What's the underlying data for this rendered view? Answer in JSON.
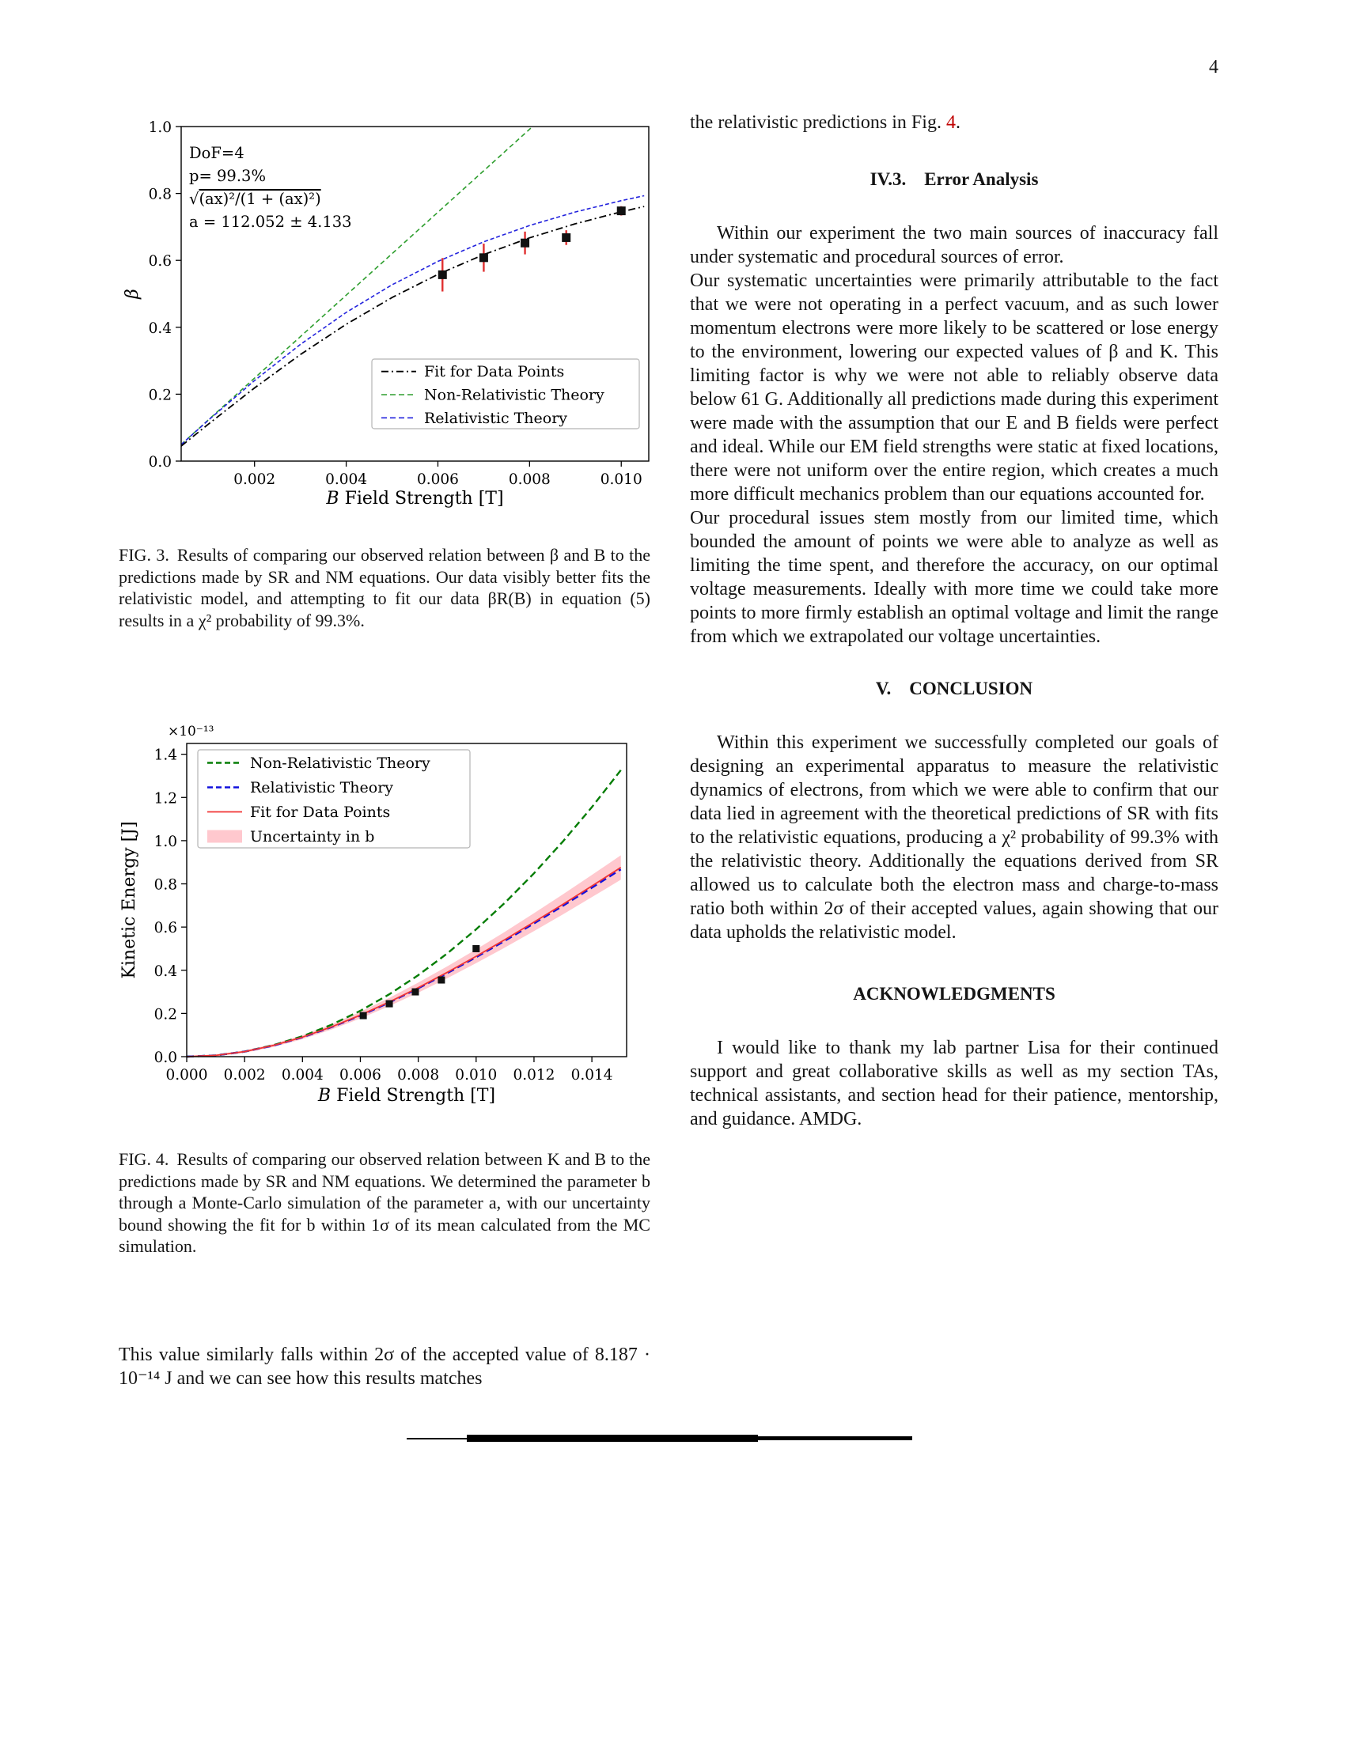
{
  "page": {
    "number": "4"
  },
  "figures": {
    "fig3": {
      "label": "FIG. 3.",
      "caption": "Results of comparing our observed relation between β and B to the predictions made by SR and NM equations. Our data visibly better fits the relativistic model, and attempting to fit our data βR(B) in equation (5) results in a χ² probability of 99.3%."
    },
    "fig4": {
      "label": "FIG. 4.",
      "caption": "Results of comparing our observed relation between K and B to the predictions made by SR and NM equations. We determined the parameter b through a Monte-Carlo simulation of the parameter a, with our uncertainty bound showing the fit for b within 1σ of its mean calculated from the MC simulation."
    }
  },
  "left_column": {
    "closing_paragraph": "This value similarly falls within 2σ of the accepted value of 8.187 · 10⁻¹⁴ J and we can see how this results matches"
  },
  "right_column": {
    "continuation": {
      "lead": "the relativistic predictions in Fig. ",
      "figref": "4",
      "tail": "."
    },
    "error_analysis": {
      "heading": "IV.3.  Error Analysis",
      "para1": "Within our experiment the two main sources of inaccuracy fall under systematic and procedural sources of error.",
      "para2": "Our systematic uncertainties were primarily attributable to the fact that we were not operating in a perfect vacuum, and as such lower momentum electrons were more likely to be scattered or lose energy to the environment, lowering our expected values of β and K. This limiting factor is why we were not able to reliably observe data below 61 G. Additionally all predictions made during this experiment were made with the assumption that our E and B fields were perfect and ideal. While our EM field strengths were static at fixed locations, there were not uniform over the entire region, which creates a much more difficult mechanics problem than our equations accounted for.",
      "para3": "Our procedural issues stem mostly from our limited time, which bounded the amount of points we were able to analyze as well as limiting the time spent, and therefore the accuracy, on our optimal voltage measurements. Ideally with more time we could take more points to more firmly establish an optimal voltage and limit the range from which we extrapolated our voltage uncertainties."
    },
    "conclusion": {
      "heading": "V.  CONCLUSION",
      "para": "Within this experiment we successfully completed our goals of designing an experimental apparatus to measure the relativistic dynamics of electrons, from which we were able to confirm that our data lied in agreement with the theoretical predictions of SR with fits to the relativistic equations, producing a χ² probability of 99.3% with the relativistic theory. Additionally the equations derived from SR allowed us to calculate both the electron mass and charge-to-mass ratio both within 2σ of their accepted values, again showing that our data upholds the relativistic model."
    },
    "acknowledgments": {
      "heading": "ACKNOWLEDGMENTS",
      "para": "I would like to thank my lab partner Lisa for their continued support and great collaborative skills as well as my section TAs, technical assistants, and section head for their patience, mentorship, and guidance. AMDG."
    }
  },
  "chart_data": [
    {
      "type": "line",
      "name": "beta-vs-b",
      "title": "",
      "xlabel_segments": [
        {
          "text": "B",
          "italic": true
        },
        {
          "text": " Field Strength [T]",
          "italic": false
        }
      ],
      "ylabel_segments": [
        {
          "text": "β",
          "italic": true
        }
      ],
      "xlim": [
        0.0004,
        0.0106
      ],
      "ylim": [
        0.0,
        1.0
      ],
      "xticks": [
        0.002,
        0.004,
        0.006,
        0.008,
        0.01
      ],
      "yticks": [
        0.0,
        0.2,
        0.4,
        0.6,
        0.8,
        1.0
      ],
      "grid": false,
      "annotation_lines": [
        "DoF=4",
        "p= 99.3%",
        "√(ax)²/(1 + (ax)²)",
        "a = 112.052 ± 4.133"
      ],
      "series": [
        {
          "name": "Non-Relativistic Theory",
          "style": "dashed",
          "dash": "6 4",
          "lw": 1.6,
          "color": "#2e9e2e",
          "x": [
            0.0004,
            0.002,
            0.004,
            0.006,
            0.008,
            0.008065
          ],
          "y": [
            0.0496,
            0.248,
            0.496,
            0.744,
            0.992,
            1.0
          ]
        },
        {
          "name": "Relativistic Theory",
          "style": "dashed",
          "dash": "5 3",
          "lw": 1.6,
          "color": "#2222dd",
          "x": [
            0.0004,
            0.001,
            0.002,
            0.003,
            0.004,
            0.005,
            0.006,
            0.007,
            0.008,
            0.009,
            0.01,
            0.0105
          ],
          "y": [
            0.0495,
            0.1231,
            0.2407,
            0.3487,
            0.4444,
            0.5269,
            0.5969,
            0.6555,
            0.7042,
            0.7447,
            0.7784,
            0.7931
          ]
        },
        {
          "name": "Fit for Data Points",
          "style": "dashdot",
          "lw": 1.8,
          "color": "#000000",
          "x": [
            0.0004,
            0.001,
            0.002,
            0.003,
            0.004,
            0.005,
            0.006,
            0.007,
            0.008,
            0.009,
            0.01,
            0.0105
          ],
          "y": [
            0.0448,
            0.1113,
            0.2187,
            0.3185,
            0.4089,
            0.4888,
            0.5582,
            0.6173,
            0.6674,
            0.7095,
            0.7451,
            0.7611
          ]
        }
      ],
      "scatter": {
        "name": "Data",
        "marker": "square",
        "color": "#111111",
        "error_color": "#e03030",
        "size": 11,
        "points": [
          [
            0.0061,
            0.557,
            0.05
          ],
          [
            0.007,
            0.608,
            0.042
          ],
          [
            0.0079,
            0.652,
            0.034
          ],
          [
            0.0088,
            0.668,
            0.022
          ],
          [
            0.01,
            0.748,
            0.014
          ]
        ]
      },
      "legend": {
        "position": "lower-right-inside",
        "items": [
          {
            "label": "Fit for Data Points",
            "color": "#000000",
            "style": "dashdot",
            "lw": 1.8
          },
          {
            "label": "Non-Relativistic Theory",
            "color": "#2e9e2e",
            "style": "dashed",
            "lw": 1.6
          },
          {
            "label": "Relativistic Theory",
            "color": "#2222dd",
            "style": "dashed",
            "lw": 1.6
          }
        ]
      }
    },
    {
      "type": "line",
      "name": "kinetic-energy-vs-b",
      "title": "",
      "offset_text": "×10⁻¹³",
      "xlabel_segments": [
        {
          "text": "B",
          "italic": true
        },
        {
          "text": " Field Strength [T]",
          "italic": false
        }
      ],
      "ylabel_segments": [
        {
          "text": "Kinetic Energy [J]",
          "italic": false
        }
      ],
      "xlim": [
        0.0,
        0.0152
      ],
      "ylim": [
        0.0,
        1.45
      ],
      "xticks": [
        0.0,
        0.002,
        0.004,
        0.006,
        0.008,
        0.01,
        0.012,
        0.014
      ],
      "yticks": [
        0.0,
        0.2,
        0.4,
        0.6,
        0.8,
        1.0,
        1.2,
        1.4
      ],
      "grid": false,
      "band": {
        "label": "Uncertainty in b",
        "color": "#ffaab4",
        "opacity": 0.65,
        "x": [
          0,
          0.001,
          0.002,
          0.003,
          0.004,
          0.005,
          0.006,
          0.007,
          0.008,
          0.009,
          0.01,
          0.011,
          0.012,
          0.013,
          0.014,
          0.015
        ],
        "upper": [
          0.004,
          0.0104,
          0.0289,
          0.059,
          0.0997,
          0.1498,
          0.2076,
          0.2726,
          0.3426,
          0.4177,
          0.4966,
          0.5787,
          0.6642,
          0.7514,
          0.8412,
          0.9323
        ],
        "lower": [
          0.0,
          0.0016,
          0.0181,
          0.0448,
          0.0809,
          0.1253,
          0.1766,
          0.2342,
          0.2962,
          0.3629,
          0.4328,
          0.5057,
          0.5814,
          0.6588,
          0.7384,
          0.8192
        ]
      },
      "series": [
        {
          "name": "Non-Relativistic Theory",
          "style": "dashed",
          "dash": "9 5",
          "lw": 2.4,
          "color": "#067d06",
          "x": [
            0,
            0.001,
            0.002,
            0.003,
            0.004,
            0.005,
            0.006,
            0.007,
            0.008,
            0.009,
            0.01,
            0.011,
            0.012,
            0.013,
            0.014,
            0.015
          ],
          "y": [
            0,
            0.0059,
            0.0236,
            0.0531,
            0.0943,
            0.1474,
            0.2122,
            0.2888,
            0.3773,
            0.4775,
            0.5895,
            0.7132,
            0.8488,
            0.9962,
            1.1554,
            1.3263
          ]
        },
        {
          "name": "Relativistic Theory",
          "style": "dashed",
          "dash": "9 5",
          "lw": 2.4,
          "color": "#1111dd",
          "x": [
            0,
            0.001,
            0.002,
            0.003,
            0.004,
            0.005,
            0.006,
            0.007,
            0.008,
            0.009,
            0.01,
            0.011,
            0.012,
            0.013,
            0.014,
            0.015
          ],
          "y": [
            0,
            0.0059,
            0.0233,
            0.0514,
            0.0894,
            0.1361,
            0.1902,
            0.2509,
            0.3162,
            0.3864,
            0.4601,
            0.5368,
            0.6166,
            0.6981,
            0.782,
            0.8671
          ]
        },
        {
          "name": "Fit for Data Points",
          "style": "solid",
          "lw": 1.8,
          "color": "#f03434",
          "x": [
            0,
            0.001,
            0.002,
            0.003,
            0.004,
            0.005,
            0.006,
            0.007,
            0.008,
            0.009,
            0.01,
            0.011,
            0.012,
            0.013,
            0.014,
            0.015
          ],
          "y": [
            0,
            0.006,
            0.0235,
            0.0519,
            0.0903,
            0.1375,
            0.1921,
            0.2534,
            0.3194,
            0.3903,
            0.4647,
            0.5422,
            0.6228,
            0.7051,
            0.7898,
            0.8758
          ]
        }
      ],
      "scatter": {
        "name": "Data",
        "marker": "square",
        "color": "#111111",
        "error_color": "#e03030",
        "size": 9,
        "points": [
          [
            0.0061,
            0.19,
            0
          ],
          [
            0.007,
            0.245,
            0
          ],
          [
            0.0079,
            0.3,
            0
          ],
          [
            0.0088,
            0.355,
            0
          ],
          [
            0.01,
            0.5,
            0
          ]
        ]
      },
      "legend": {
        "position": "upper-left-inside",
        "items": [
          {
            "label": "Non-Relativistic Theory",
            "color": "#067d06",
            "style": "dashed",
            "lw": 2.4
          },
          {
            "label": "Relativistic Theory",
            "color": "#1111dd",
            "style": "dashed",
            "lw": 2.4
          },
          {
            "label": "Fit for Data Points",
            "color": "#f03434",
            "style": "solid",
            "lw": 1.8
          },
          {
            "label": "Uncertainty in b",
            "color": "#ffaab4",
            "style": "patch"
          }
        ]
      }
    }
  ]
}
